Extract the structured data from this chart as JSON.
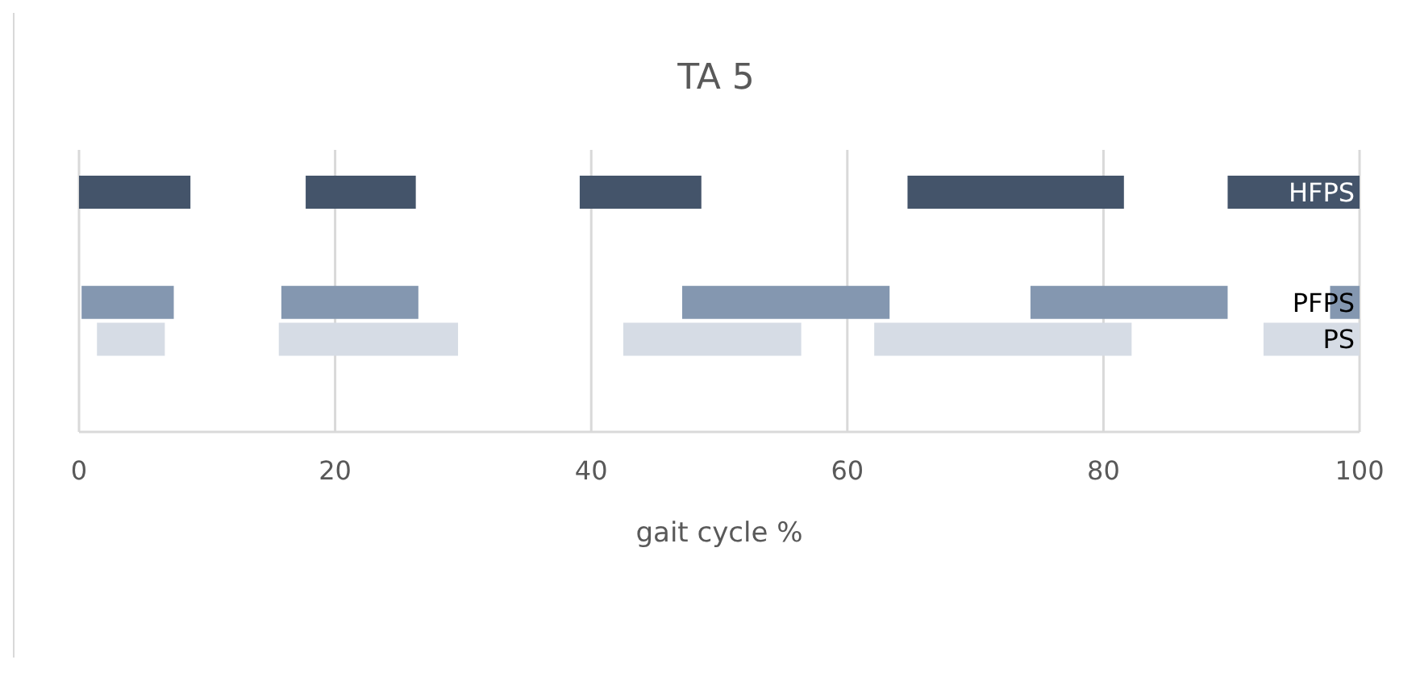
{
  "chart_data": {
    "type": "bar",
    "orientation": "horizontal",
    "title": "TA 5",
    "xlabel": "gait cycle %",
    "categories": [
      "HFPS",
      null,
      null,
      "PFPS",
      "PS"
    ],
    "series": [
      {
        "values": [
          8.7,
          null,
          null,
          7.2,
          5.3
        ],
        "base": [
          0,
          null,
          null,
          0.2,
          1.4
        ],
        "colors": [
          "#44546a",
          null,
          null,
          "#8497b0",
          "#d6dce5"
        ]
      },
      {
        "values": [
          8.6,
          null,
          null,
          10.7,
          14.0
        ],
        "base": [
          17.7,
          null,
          null,
          15.8,
          15.6
        ],
        "colors": [
          "#44546a",
          null,
          null,
          "#8497b0",
          "#d6dce5"
        ]
      },
      {
        "values": [
          9.5,
          null,
          null,
          16.2,
          13.9
        ],
        "base": [
          39.1,
          null,
          null,
          47.1,
          42.5
        ],
        "colors": [
          "#44546a",
          null,
          null,
          "#8497b0",
          "#d6dce5"
        ]
      },
      {
        "values": [
          16.9,
          null,
          null,
          15.4,
          20.1
        ],
        "base": [
          64.7,
          null,
          null,
          74.3,
          62.1
        ],
        "colors": [
          "#44546a",
          null,
          null,
          "#8497b0",
          "#d6dce5"
        ]
      },
      {
        "values": [
          10.3,
          null,
          null,
          2.3,
          7.5
        ],
        "base": [
          89.7,
          null,
          null,
          97.7,
          92.5
        ],
        "colors": [
          "#44546a",
          null,
          null,
          "#8497b0",
          "#d6dce5"
        ]
      }
    ],
    "xlim": [
      0,
      100
    ],
    "xticks": [
      0,
      20,
      40,
      60,
      80,
      100
    ],
    "grid": "x"
  }
}
